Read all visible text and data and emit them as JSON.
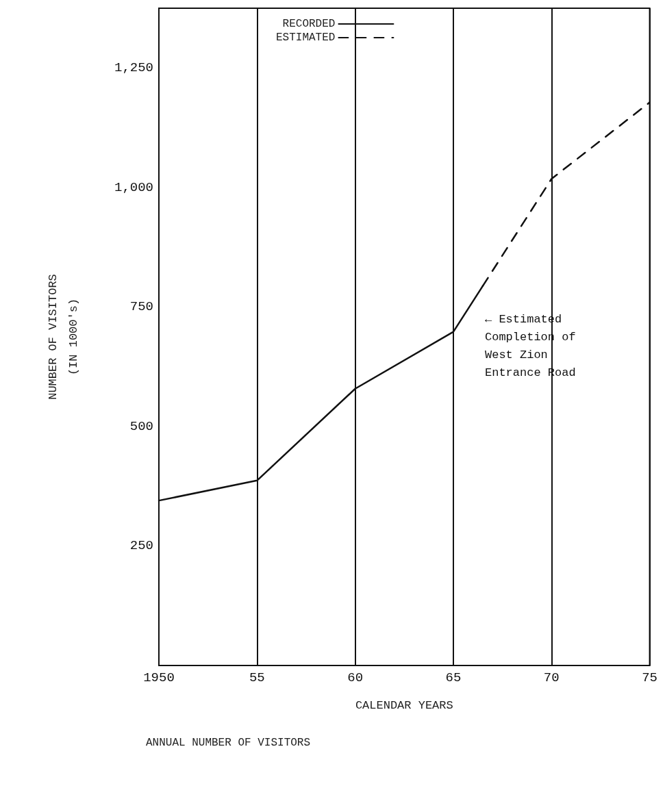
{
  "chart_data": {
    "type": "line",
    "title": "ANNUAL NUMBER OF VISITORS",
    "xlabel": "CALENDAR YEARS",
    "ylabel": "NUMBER OF VISITORS\n(IN 1000's)",
    "series": [
      {
        "name": "RECORDED",
        "color": "#111111",
        "line_style": "solid",
        "x": [
          1950,
          1955,
          1960,
          1965,
          1966.5
        ],
        "values": [
          345,
          387,
          579,
          698,
          794
        ]
      },
      {
        "name": "ESTIMATED",
        "color": "#111111",
        "line_style": "dashed",
        "x": [
          1966.5,
          1970,
          1975
        ],
        "values": [
          794,
          1018,
          1178
        ]
      }
    ],
    "xlim": [
      1950,
      1975
    ],
    "xticks": [
      1950,
      {
        "value": 1955,
        "label": "55"
      },
      {
        "value": 1960,
        "label": "60"
      },
      {
        "value": 1965,
        "label": "65"
      },
      {
        "value": 1970,
        "label": "70"
      },
      {
        "value": 1975,
        "label": "75"
      }
    ],
    "ylim": [
      0,
      1375
    ],
    "yticks": [
      250,
      500,
      750,
      {
        "value": 1000,
        "label": "1,000"
      },
      {
        "value": 1250,
        "label": "1,250"
      }
    ],
    "annotations": [
      "← Estimated\nCompletion of\nWest Zion\nEntrance Road"
    ],
    "grid": "x",
    "legend": "top",
    "marker": "none"
  }
}
